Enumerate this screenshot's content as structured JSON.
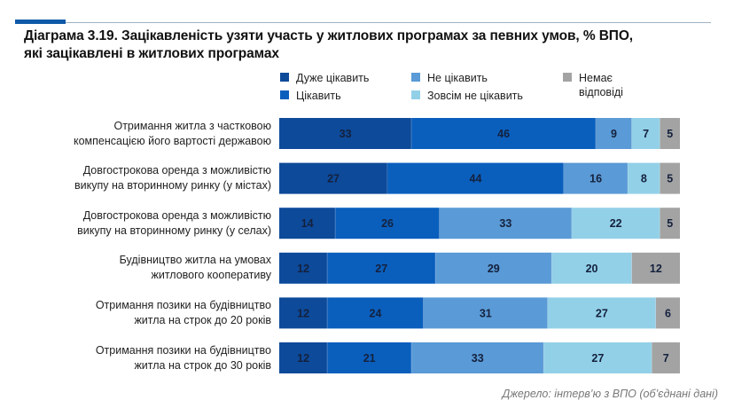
{
  "chart_data": {
    "type": "bar",
    "orientation": "horizontal",
    "stacked": true,
    "title": "Діаграма 3.19. Зацікавленість узяти участь у житлових програмах за певних умов, % ВПО, які зацікавлені в житлових програмах",
    "title_lines": [
      "Діаграма 3.19. Зацікавленість узяти участь у житлових програмах за певних умов, % ВПО,",
      "які зацікавлені в житлових програмах"
    ],
    "xlabel": "",
    "ylabel": "",
    "xlim": [
      0,
      100
    ],
    "grid": false,
    "legend_position": "top",
    "categories": [
      "Отримання житла з частковою компенсацією його вартості державою",
      "Довгострокова оренда з можливістю викупу на вторинному ринку (у містах)",
      "Довгострокова оренда з можливістю викупу на вторинному ринку (у селах)",
      "Будівництво житла на умовах житлового кооперативу",
      "Отримання позики на будівництво житла на строк до 20 років",
      "Отримання позики на будівництво житла на строк до 30 років"
    ],
    "category_lines": [
      [
        "Отримання житла з частковою",
        "компенсацією його вартості державою"
      ],
      [
        "Довгострокова оренда з можливістю",
        "викупу на вторинному ринку (у містах)"
      ],
      [
        "Довгострокова оренда з можливістю",
        "викупу на вторинному ринку (у селах)"
      ],
      [
        "Будівництво житла на умовах",
        "житлового кооперативу"
      ],
      [
        "Отримання позики на будівництво",
        "житла на строк до 20 років"
      ],
      [
        "Отримання позики на будівництво",
        "житла на строк до 30 років"
      ]
    ],
    "series": [
      {
        "name": "Дуже цікавить",
        "color": "#0d4a9a",
        "values": [
          33,
          27,
          14,
          12,
          12,
          12
        ]
      },
      {
        "name": "Цікавить",
        "color": "#0a5fbd",
        "values": [
          46,
          44,
          26,
          27,
          24,
          21
        ]
      },
      {
        "name": "Не цікавить",
        "color": "#5a9ad6",
        "values": [
          9,
          16,
          33,
          29,
          31,
          33
        ]
      },
      {
        "name": "Зовсім не цікавить",
        "color": "#92d0e8",
        "values": [
          7,
          8,
          22,
          20,
          27,
          27
        ]
      },
      {
        "name": "Немає відповіді",
        "color": "#a3a3a3",
        "values": [
          5,
          5,
          5,
          12,
          6,
          7
        ]
      }
    ],
    "legend_lines": [
      [
        "Дуже цікавить"
      ],
      [
        "Цікавить"
      ],
      [
        "Не цікавить"
      ],
      [
        "Зовсім не цікавить"
      ],
      [
        "Немає",
        "відповіді"
      ]
    ],
    "source": "Джерело: інтерв’ю з ВПО (об’єднані дані)"
  }
}
